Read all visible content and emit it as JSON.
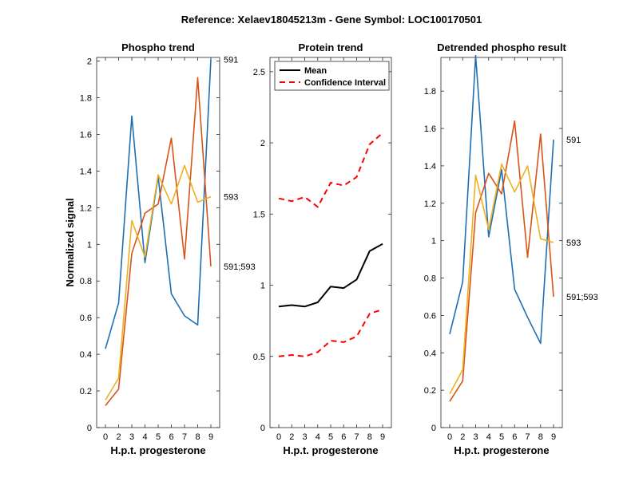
{
  "figure_title": "Reference:  Xelaev18045213m - Gene Symbol:  LOC100170501",
  "colors": {
    "blue": "#1f6fb3",
    "orange": "#d95319",
    "yellow": "#edb120",
    "mean": "#000000",
    "ci": "#ff0000"
  },
  "chart_data": [
    {
      "type": "line",
      "title": "Phospho trend",
      "xlabel": "H.p.t. progesterone",
      "ylabel": "Normalized signal",
      "categories": [
        "0",
        "2",
        "3",
        "4",
        "5",
        "6",
        "7",
        "8",
        "9"
      ],
      "ylim": [
        0,
        2.02
      ],
      "yticks": [
        0,
        0.2,
        0.4,
        0.6,
        0.8,
        1,
        1.2,
        1.4,
        1.6,
        1.8,
        2
      ],
      "ytick_labels": [
        "0",
        "0.2",
        "0.4",
        "0.6",
        "0.8",
        "1",
        "1.2",
        "1.4",
        "1.6",
        "1.8",
        "2"
      ],
      "series": [
        {
          "name": "591",
          "color": "blue",
          "end_label": "591",
          "values": [
            0.43,
            0.68,
            1.7,
            0.9,
            1.37,
            0.73,
            0.61,
            0.56,
            2.01
          ]
        },
        {
          "name": "591;593",
          "color": "orange",
          "end_label": "591;593",
          "values": [
            0.12,
            0.21,
            0.95,
            1.17,
            1.22,
            1.58,
            0.92,
            1.91,
            0.88
          ]
        },
        {
          "name": "593",
          "color": "yellow",
          "end_label": "593",
          "values": [
            0.15,
            0.27,
            1.13,
            0.93,
            1.38,
            1.22,
            1.43,
            1.23,
            1.26
          ]
        }
      ]
    },
    {
      "type": "line",
      "title": "Protein trend",
      "xlabel": "H.p.t. progesterone",
      "ylabel": "",
      "categories": [
        "0",
        "2",
        "3",
        "4",
        "5",
        "6",
        "7",
        "8",
        "9"
      ],
      "ylim": [
        0,
        2.6
      ],
      "yticks": [
        0,
        0.5,
        1,
        1.5,
        2,
        2.5
      ],
      "ytick_labels": [
        "0",
        "0.5",
        "1",
        "1.5",
        "2",
        "2.5"
      ],
      "legend": {
        "position": "top-left",
        "entries": [
          {
            "label": "Mean",
            "series": "Mean"
          },
          {
            "label": "Confidence Interval",
            "series": "Confidence Interval"
          }
        ]
      },
      "series": [
        {
          "name": "Mean",
          "color": "mean",
          "dashed": false,
          "values": [
            0.85,
            0.86,
            0.85,
            0.88,
            0.99,
            0.98,
            1.04,
            1.24,
            1.29
          ]
        },
        {
          "name": "Confidence Interval",
          "color": "ci",
          "dashed": true,
          "values": [
            1.61,
            1.59,
            1.62,
            1.55,
            1.72,
            1.7,
            1.76,
            1.99,
            2.07
          ]
        },
        {
          "name": "Confidence Interval",
          "color": "ci",
          "dashed": true,
          "values": [
            0.5,
            0.51,
            0.5,
            0.53,
            0.61,
            0.6,
            0.64,
            0.8,
            0.83
          ]
        }
      ]
    },
    {
      "type": "line",
      "title": "Detrended phospho result",
      "xlabel": "H.p.t. progesterone",
      "ylabel": "",
      "categories": [
        "0",
        "2",
        "3",
        "4",
        "5",
        "6",
        "7",
        "8",
        "9"
      ],
      "ylim": [
        0,
        1.98
      ],
      "yticks": [
        0,
        0.2,
        0.4,
        0.6,
        0.8,
        1,
        1.2,
        1.4,
        1.6,
        1.8
      ],
      "ytick_labels": [
        "0",
        "0.2",
        "0.4",
        "0.6",
        "0.8",
        "1",
        "1.2",
        "1.4",
        "1.6",
        "1.8"
      ],
      "series": [
        {
          "name": "591",
          "color": "blue",
          "end_label": "591",
          "values": [
            0.5,
            0.78,
            1.99,
            1.02,
            1.38,
            0.74,
            0.59,
            0.45,
            1.54
          ]
        },
        {
          "name": "591;593",
          "color": "orange",
          "end_label": "591;593",
          "values": [
            0.14,
            0.25,
            1.15,
            1.36,
            1.25,
            1.64,
            0.91,
            1.57,
            0.7
          ]
        },
        {
          "name": "593",
          "color": "yellow",
          "end_label": "593",
          "values": [
            0.18,
            0.31,
            1.35,
            1.06,
            1.41,
            1.26,
            1.4,
            1.01,
            0.99
          ]
        }
      ]
    }
  ]
}
